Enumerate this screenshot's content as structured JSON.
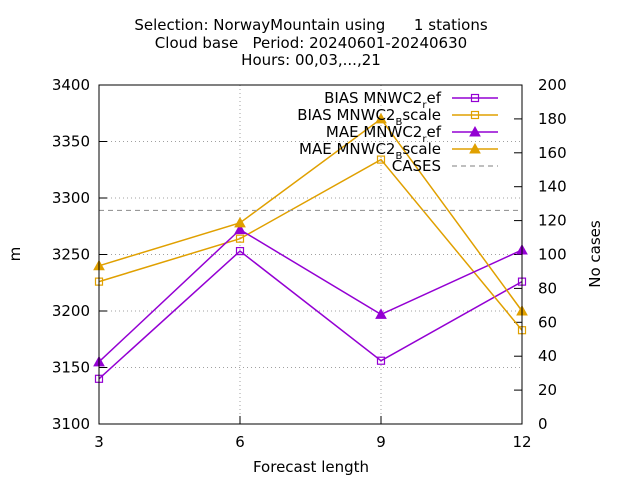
{
  "chart_data": {
    "type": "line",
    "title_lines": [
      "Selection: NorwayMountain using      1 stations",
      "Cloud base   Period: 20240601-20240630",
      "Hours: 00,03,...,21"
    ],
    "xlabel": "Forecast length",
    "ylabel": "m",
    "y2label": "No cases",
    "x": [
      3,
      6,
      9,
      12
    ],
    "xlim": [
      3,
      12
    ],
    "ylim": [
      3100,
      3400
    ],
    "y2lim": [
      0,
      200
    ],
    "xticks": [
      3,
      6,
      9,
      12
    ],
    "yticks": [
      3100,
      3150,
      3200,
      3250,
      3300,
      3350,
      3400
    ],
    "y2ticks": [
      0,
      20,
      40,
      60,
      80,
      100,
      120,
      140,
      160,
      180,
      200
    ],
    "grid": true,
    "legend_position": "top-right",
    "series": [
      {
        "name": "BIAS MNWC2",
        "name_sub": "r",
        "name_tail": "ef",
        "axis": "y",
        "marker": "square",
        "color": "#9400d3",
        "values": [
          3140,
          3253,
          3156,
          3226
        ]
      },
      {
        "name": "BIAS MNWC2",
        "name_sub": "B",
        "name_tail": "scale",
        "axis": "y",
        "marker": "square",
        "color": "#e0a000",
        "values": [
          3226,
          3264,
          3334,
          3183
        ]
      },
      {
        "name": "MAE MNWC2",
        "name_sub": "r",
        "name_tail": "ef",
        "axis": "y",
        "marker": "triangle",
        "color": "#9400d3",
        "values": [
          3155,
          3272,
          3197,
          3254
        ]
      },
      {
        "name": "MAE MNWC2",
        "name_sub": "B",
        "name_tail": "scale",
        "axis": "y",
        "marker": "triangle",
        "color": "#e0a000",
        "values": [
          3240,
          3278,
          3370,
          3200
        ]
      },
      {
        "name": "CASES",
        "name_sub": "",
        "name_tail": "",
        "axis": "y2",
        "marker": "none",
        "color": "#999999",
        "dashed": true,
        "values": [
          126,
          126,
          126,
          126
        ]
      }
    ]
  }
}
